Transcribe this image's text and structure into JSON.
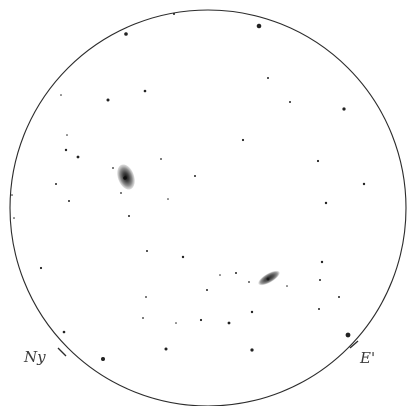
{
  "sketch": {
    "labels": {
      "north": "Ny",
      "east": "E'"
    },
    "colors": {
      "paper": "#ffffff",
      "ink": "#222222",
      "galaxy_outer": "#9a9a9a",
      "galaxy_core": "#1e1e1e"
    },
    "objects": [
      {
        "name": "galaxy-upper-left",
        "kind": "galaxy"
      },
      {
        "name": "galaxy-lower-right",
        "kind": "galaxy"
      }
    ]
  }
}
